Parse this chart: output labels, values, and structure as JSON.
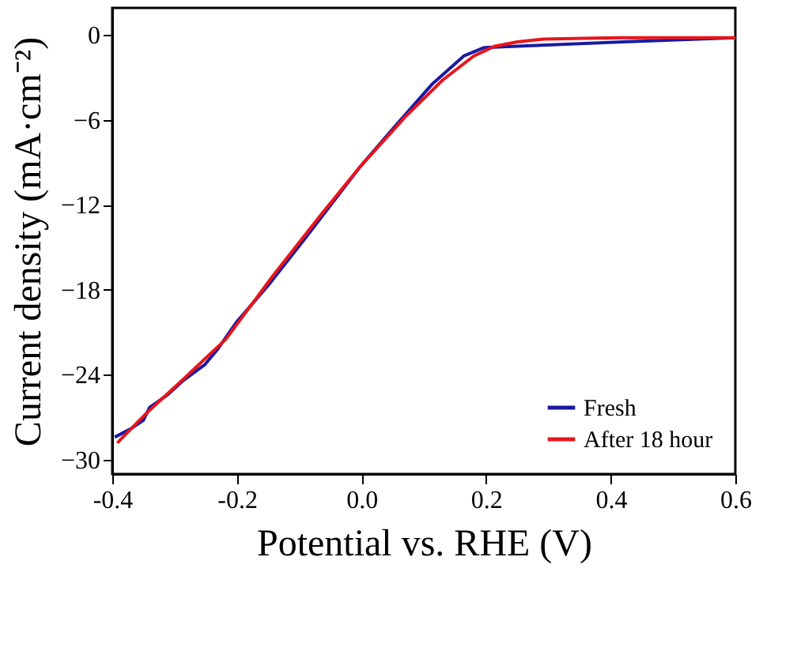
{
  "chart_data": {
    "type": "line",
    "xlabel": "Potential vs. RHE (V)",
    "ylabel": "Current density (mA·cm⁻²)",
    "xlim": [
      -0.4,
      0.6
    ],
    "ylim": [
      -31,
      1.9
    ],
    "xticks": [
      {
        "value": -0.4,
        "label": "-0.4"
      },
      {
        "value": -0.2,
        "label": "-0.2"
      },
      {
        "value": 0,
        "label": "0.0"
      },
      {
        "value": 0.2,
        "label": "0.2"
      },
      {
        "value": 0.4,
        "label": "0.4"
      },
      {
        "value": 0.6,
        "label": "0.6"
      }
    ],
    "yticks": [
      0,
      -6,
      -12,
      -18,
      -24,
      -30
    ],
    "grid": false,
    "legend": "bottom right",
    "marker": "none",
    "line_style": "solid",
    "series": [
      {
        "name": "Fresh",
        "color": "#1a1aa0",
        "x": [
          -0.396,
          -0.37,
          -0.35,
          -0.34,
          -0.311,
          -0.286,
          -0.252,
          -0.231,
          -0.201,
          -0.15,
          -0.091,
          -0.002,
          0.053,
          0.113,
          0.164,
          0.197,
          0.25,
          0.42,
          0.6
        ],
        "values": [
          -28.4,
          -27.8,
          -27.2,
          -26.3,
          -25.4,
          -24.4,
          -23.3,
          -22.2,
          -20.3,
          -17.7,
          -14.4,
          -9.3,
          -6.5,
          -3.5,
          -1.5,
          -0.9,
          -0.8,
          -0.5,
          -0.2
        ]
      },
      {
        "name": "After 18 hour",
        "color": "#e8151b",
        "x": [
          -0.392,
          -0.345,
          -0.286,
          -0.218,
          -0.142,
          -0.065,
          -0.002,
          0.07,
          0.13,
          0.18,
          0.214,
          0.25,
          0.292,
          0.42,
          0.6
        ],
        "values": [
          -28.8,
          -26.7,
          -24.3,
          -21.5,
          -17.0,
          -12.7,
          -9.3,
          -5.8,
          -3.2,
          -1.5,
          -0.8,
          -0.5,
          -0.3,
          -0.2,
          -0.2
        ]
      }
    ]
  }
}
